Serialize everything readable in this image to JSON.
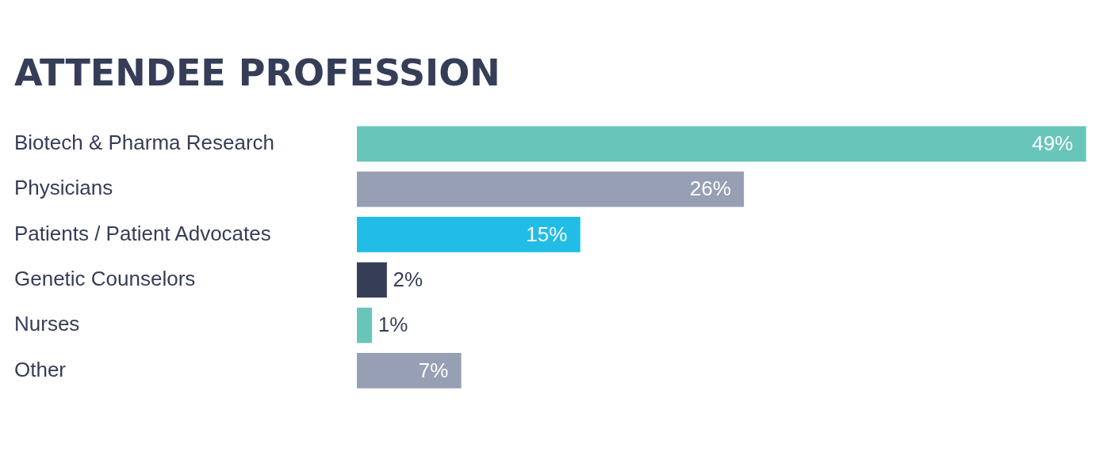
{
  "chart_data": {
    "type": "bar",
    "orientation": "horizontal",
    "title": "ATTENDEE PROFESSION",
    "categories": [
      "Biotech & Pharma Research",
      "Physicians",
      "Patients / Patient Advocates",
      "Genetic Counselors",
      "Nurses",
      "Other"
    ],
    "values": [
      49,
      26,
      15,
      2,
      1,
      7
    ],
    "colors": [
      "#67c6b9",
      "#969fb3",
      "#21bde6",
      "#363d57",
      "#67c6b9",
      "#969fb3"
    ],
    "value_labels": [
      "49%",
      "26%",
      "15%",
      "2%",
      "1%",
      "7%"
    ],
    "tick_labels": "y"
  }
}
